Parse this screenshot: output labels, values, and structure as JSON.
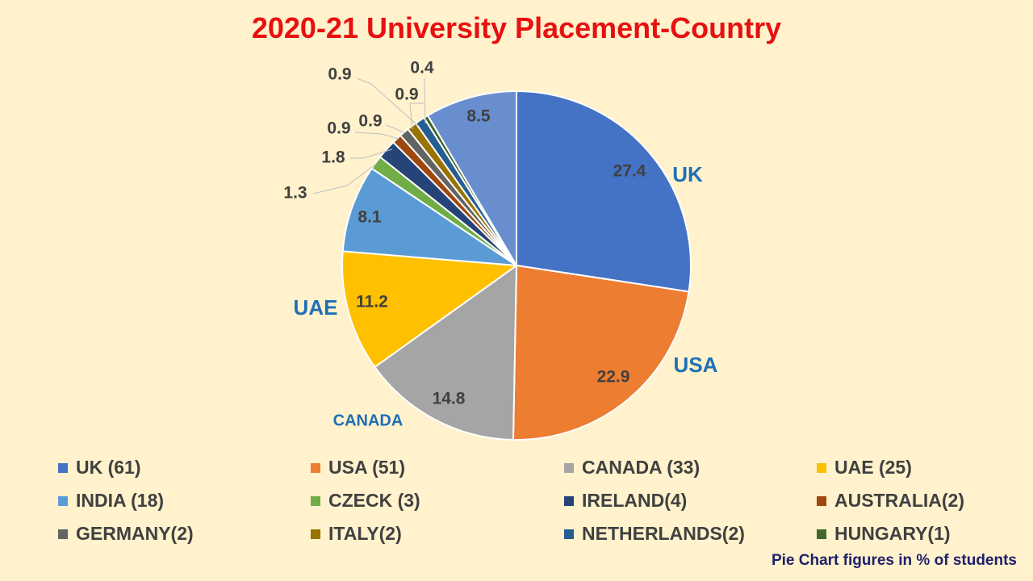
{
  "chart_data": {
    "type": "pie",
    "title": "2020-21 University Placement-Country",
    "note": "Pie Chart figures in % of students",
    "slices": [
      {
        "legend": "UK (61)",
        "value": 27.4,
        "label": "27.4",
        "callout": "UK",
        "color": "#4472c4"
      },
      {
        "legend": "USA (51)",
        "value": 22.9,
        "label": "22.9",
        "callout": "USA",
        "color": "#ed7d31"
      },
      {
        "legend": "CANADA (33)",
        "value": 14.8,
        "label": "14.8",
        "callout": "CANADA",
        "color": "#a5a5a5"
      },
      {
        "legend": "UAE (25)",
        "value": 11.2,
        "label": "11.2",
        "callout": "UAE",
        "color": "#ffc000"
      },
      {
        "legend": "INDIA (18)",
        "value": 8.1,
        "label": "8.1",
        "callout": "",
        "color": "#5b9bd5"
      },
      {
        "legend": "CZECK (3)",
        "value": 1.3,
        "label": "1.3",
        "callout": "",
        "color": "#70ad47"
      },
      {
        "legend": "IRELAND(4)",
        "value": 1.8,
        "label": "1.8",
        "callout": "",
        "color": "#264478"
      },
      {
        "legend": "AUSTRALIA(2)",
        "value": 0.9,
        "label": "0.9",
        "callout": "",
        "color": "#9e480e"
      },
      {
        "legend": "GERMANY(2)",
        "value": 0.9,
        "label": "0.9",
        "callout": "",
        "color": "#636363"
      },
      {
        "legend": "ITALY(2)",
        "value": 0.9,
        "label": "0.9",
        "callout": "",
        "color": "#997300"
      },
      {
        "legend": "NETHERLANDS(2)",
        "value": 0.9,
        "label": "0.9",
        "callout": "",
        "color": "#255e91"
      },
      {
        "legend": "HUNGARY(1)",
        "value": 0.4,
        "label": "0.4",
        "callout": "",
        "color": "#43682b"
      },
      {
        "legend": "",
        "value": 8.5,
        "label": "8.5",
        "callout": "",
        "color": "#698ed0"
      }
    ],
    "legend_placement": "bottom",
    "label_color": "#404040",
    "callout_color": "#1f6fb5"
  }
}
